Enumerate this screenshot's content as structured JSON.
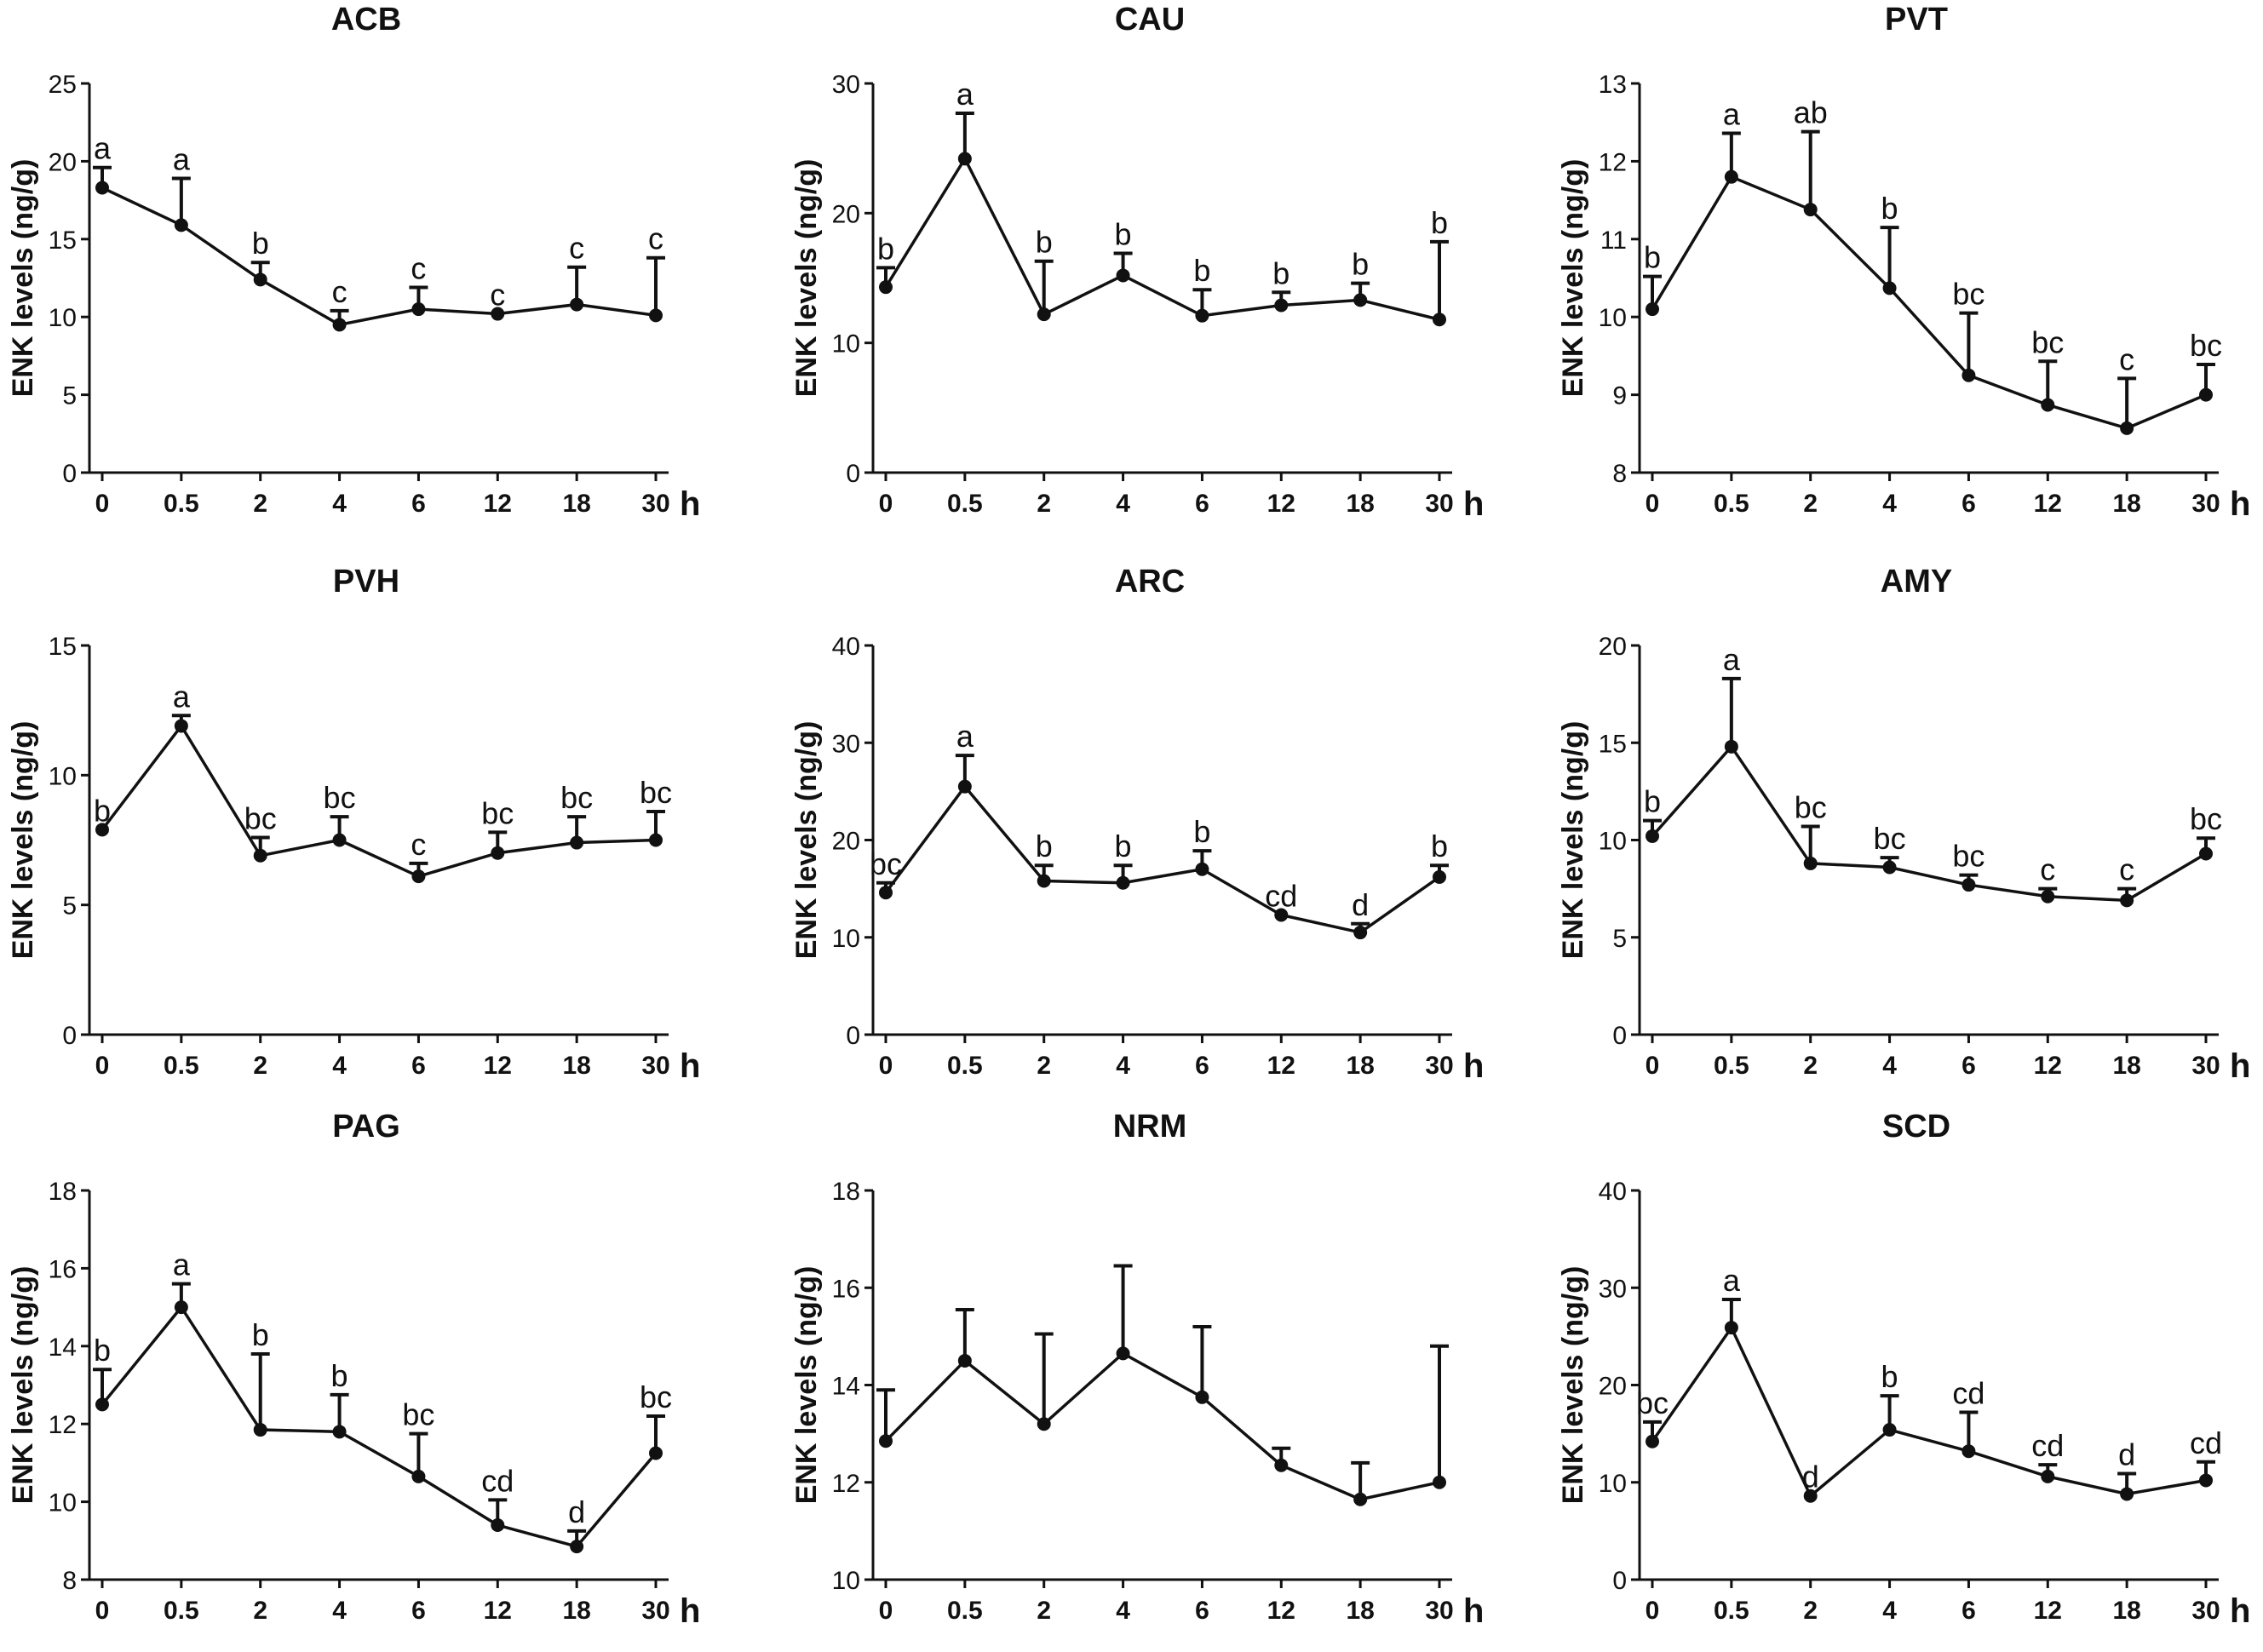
{
  "figure": {
    "x_unit": "h",
    "ylabel": "ENK levels (ng/g)"
  },
  "chart_data": [
    {
      "type": "line",
      "title": "ACB",
      "xlabel": "h",
      "ylabel": "ENK levels (ng/g)",
      "categories": [
        "0",
        "0.5",
        "2",
        "4",
        "6",
        "12",
        "18",
        "30"
      ],
      "values": [
        18.3,
        15.9,
        12.4,
        9.5,
        10.5,
        10.2,
        10.8,
        10.1
      ],
      "error_upper": [
        19.6,
        18.9,
        13.5,
        10.4,
        11.9,
        10.2,
        13.2,
        13.8
      ],
      "letters": [
        "a",
        "a",
        "b",
        "c",
        "c",
        "c",
        "c",
        "c"
      ],
      "ylim": [
        0,
        25
      ],
      "yticks": [
        0,
        5,
        10,
        15,
        20,
        25
      ]
    },
    {
      "type": "line",
      "title": "CAU",
      "xlabel": "h",
      "ylabel": "ENK levels (ng/g)",
      "categories": [
        "0",
        "0.5",
        "2",
        "4",
        "6",
        "12",
        "18",
        "30"
      ],
      "values": [
        14.3,
        24.2,
        12.2,
        15.2,
        12.1,
        12.9,
        13.3,
        11.8
      ],
      "error_upper": [
        15.8,
        27.7,
        16.3,
        16.9,
        14.1,
        13.9,
        14.6,
        17.8
      ],
      "letters": [
        "b",
        "a",
        "b",
        "b",
        "b",
        "b",
        "b",
        "b"
      ],
      "ylim": [
        0,
        30
      ],
      "yticks": [
        0,
        10,
        20,
        30
      ]
    },
    {
      "type": "line",
      "title": "PVT",
      "xlabel": "h",
      "ylabel": "ENK levels (ng/g)",
      "categories": [
        "0",
        "0.5",
        "2",
        "4",
        "6",
        "12",
        "18",
        "30"
      ],
      "values": [
        10.1,
        11.8,
        11.38,
        10.37,
        9.25,
        8.87,
        8.57,
        9.0
      ],
      "error_upper": [
        10.52,
        12.36,
        12.38,
        11.15,
        10.05,
        9.43,
        9.21,
        9.39
      ],
      "letters": [
        "b",
        "a",
        "ab",
        "b",
        "bc",
        "bc",
        "c",
        "bc"
      ],
      "ylim": [
        8,
        13
      ],
      "yticks": [
        8,
        9,
        10,
        11,
        12,
        13
      ]
    },
    {
      "type": "line",
      "title": "PVH",
      "xlabel": "h",
      "ylabel": "ENK levels (ng/g)",
      "categories": [
        "0",
        "0.5",
        "2",
        "4",
        "6",
        "12",
        "18",
        "30"
      ],
      "values": [
        7.9,
        11.9,
        6.9,
        7.5,
        6.1,
        7.0,
        7.4,
        7.5
      ],
      "error_upper": [
        7.9,
        12.3,
        7.6,
        8.4,
        6.6,
        7.8,
        8.4,
        8.6
      ],
      "letters": [
        "b",
        "a",
        "bc",
        "bc",
        "c",
        "bc",
        "bc",
        "bc"
      ],
      "ylim": [
        0,
        15
      ],
      "yticks": [
        0,
        5,
        10,
        15
      ]
    },
    {
      "type": "line",
      "title": "ARC",
      "xlabel": "h",
      "ylabel": "ENK levels (ng/g)",
      "categories": [
        "0",
        "0.5",
        "2",
        "4",
        "6",
        "12",
        "18",
        "30"
      ],
      "values": [
        14.6,
        25.5,
        15.8,
        15.6,
        17.0,
        12.3,
        10.5,
        16.2
      ],
      "error_upper": [
        15.6,
        28.7,
        17.4,
        17.4,
        18.9,
        12.3,
        11.4,
        17.4
      ],
      "letters": [
        "bc",
        "a",
        "b",
        "b",
        "b",
        "cd",
        "d",
        "b"
      ],
      "ylim": [
        0,
        40
      ],
      "yticks": [
        0,
        10,
        20,
        30,
        40
      ]
    },
    {
      "type": "line",
      "title": "AMY",
      "xlabel": "h",
      "ylabel": "ENK levels (ng/g)",
      "categories": [
        "0",
        "0.5",
        "2",
        "4",
        "6",
        "12",
        "18",
        "30"
      ],
      "values": [
        10.2,
        14.8,
        8.8,
        8.6,
        7.7,
        7.1,
        6.9,
        9.3
      ],
      "error_upper": [
        11.0,
        18.3,
        10.7,
        9.1,
        8.2,
        7.5,
        7.5,
        10.1
      ],
      "letters": [
        "b",
        "a",
        "bc",
        "bc",
        "bc",
        "c",
        "c",
        "bc"
      ],
      "ylim": [
        0,
        20
      ],
      "yticks": [
        0,
        5,
        10,
        15,
        20
      ]
    },
    {
      "type": "line",
      "title": "PAG",
      "xlabel": "h",
      "ylabel": "ENK levels (ng/g)",
      "categories": [
        "0",
        "0.5",
        "2",
        "4",
        "6",
        "12",
        "18",
        "30"
      ],
      "values": [
        12.5,
        15.0,
        11.85,
        11.8,
        10.65,
        9.4,
        8.85,
        11.25
      ],
      "error_upper": [
        13.4,
        15.6,
        13.8,
        12.75,
        11.75,
        10.05,
        9.25,
        12.2
      ],
      "letters": [
        "b",
        "a",
        "b",
        "b",
        "bc",
        "cd",
        "d",
        "bc"
      ],
      "ylim": [
        8,
        18
      ],
      "yticks": [
        8,
        10,
        12,
        14,
        16,
        18
      ]
    },
    {
      "type": "line",
      "title": "NRM",
      "xlabel": "h",
      "ylabel": "ENK levels (ng/g)",
      "categories": [
        "0",
        "0.5",
        "2",
        "4",
        "6",
        "12",
        "18",
        "30"
      ],
      "values": [
        12.85,
        14.5,
        13.2,
        14.65,
        13.75,
        12.35,
        11.65,
        12.0
      ],
      "error_upper": [
        13.9,
        15.55,
        15.05,
        16.45,
        15.2,
        12.7,
        12.4,
        14.8
      ],
      "letters": [
        "",
        "",
        "",
        "",
        "",
        "",
        "",
        ""
      ],
      "ylim": [
        10,
        18
      ],
      "yticks": [
        10,
        12,
        14,
        16,
        18
      ]
    },
    {
      "type": "line",
      "title": "SCD",
      "xlabel": "h",
      "ylabel": "ENK levels (ng/g)",
      "categories": [
        "0",
        "0.5",
        "2",
        "4",
        "6",
        "12",
        "18",
        "30"
      ],
      "values": [
        14.2,
        25.9,
        8.6,
        15.4,
        13.2,
        10.6,
        8.8,
        10.2
      ],
      "error_upper": [
        16.2,
        28.8,
        8.6,
        18.9,
        17.2,
        11.8,
        10.9,
        12.1
      ],
      "letters": [
        "bc",
        "a",
        "d",
        "b",
        "cd",
        "cd",
        "d",
        "cd"
      ],
      "ylim": [
        0,
        40
      ],
      "yticks": [
        0,
        10,
        20,
        30,
        40
      ]
    }
  ]
}
